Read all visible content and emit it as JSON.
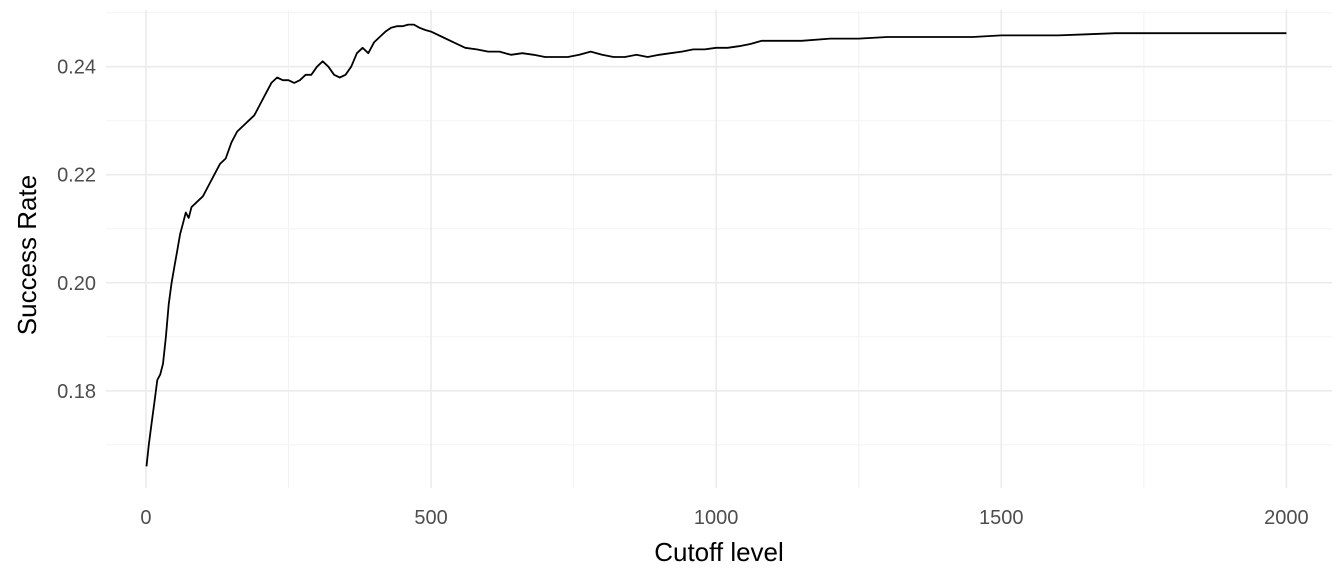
{
  "chart_data": {
    "type": "line",
    "title": "",
    "xlabel": "Cutoff level",
    "ylabel": "Success Rate",
    "xlim": [
      -70,
      2080
    ],
    "ylim": [
      0.162,
      0.2505
    ],
    "x_ticks": [
      0,
      500,
      1000,
      1500,
      2000
    ],
    "x_tick_labels": [
      "0",
      "500",
      "1000",
      "1500",
      "2000"
    ],
    "y_ticks": [
      0.18,
      0.2,
      0.22,
      0.24
    ],
    "y_tick_labels": [
      "0.18",
      "0.20",
      "0.22",
      "0.24"
    ],
    "grid": true,
    "legend": "none",
    "series": [
      {
        "color": "#000000",
        "x": [
          1,
          5,
          10,
          15,
          20,
          25,
          30,
          35,
          40,
          45,
          50,
          55,
          60,
          65,
          70,
          75,
          80,
          90,
          100,
          110,
          120,
          130,
          140,
          150,
          160,
          170,
          180,
          190,
          200,
          210,
          220,
          230,
          240,
          250,
          260,
          270,
          280,
          290,
          300,
          310,
          320,
          330,
          340,
          350,
          360,
          370,
          380,
          390,
          400,
          410,
          420,
          430,
          440,
          450,
          460,
          470,
          480,
          490,
          500,
          520,
          540,
          560,
          580,
          600,
          620,
          640,
          660,
          680,
          700,
          720,
          740,
          760,
          780,
          800,
          820,
          840,
          860,
          880,
          900,
          920,
          940,
          960,
          980,
          1000,
          1020,
          1040,
          1060,
          1080,
          1100,
          1150,
          1200,
          1250,
          1300,
          1350,
          1400,
          1450,
          1500,
          1550,
          1600,
          1650,
          1700,
          1750,
          1800,
          1850,
          1900,
          1950,
          2000
        ],
        "y": [
          0.166,
          0.17,
          0.174,
          0.178,
          0.182,
          0.183,
          0.185,
          0.19,
          0.196,
          0.2,
          0.203,
          0.206,
          0.209,
          0.211,
          0.213,
          0.212,
          0.214,
          0.215,
          0.216,
          0.218,
          0.22,
          0.222,
          0.223,
          0.226,
          0.228,
          0.229,
          0.23,
          0.231,
          0.233,
          0.235,
          0.237,
          0.238,
          0.2375,
          0.2375,
          0.237,
          0.2375,
          0.2385,
          0.2385,
          0.24,
          0.241,
          0.24,
          0.2385,
          0.238,
          0.2385,
          0.24,
          0.2425,
          0.2435,
          0.2425,
          0.2445,
          0.2455,
          0.2465,
          0.2472,
          0.2475,
          0.2475,
          0.2478,
          0.2478,
          0.2472,
          0.2468,
          0.2465,
          0.2455,
          0.2445,
          0.2435,
          0.2432,
          0.2428,
          0.2428,
          0.2422,
          0.2425,
          0.2422,
          0.2418,
          0.2418,
          0.2418,
          0.2422,
          0.2428,
          0.2422,
          0.2418,
          0.2418,
          0.2422,
          0.2418,
          0.2422,
          0.2425,
          0.2428,
          0.2432,
          0.2432,
          0.2435,
          0.2435,
          0.2438,
          0.2442,
          0.2448,
          0.2448,
          0.2448,
          0.2452,
          0.2452,
          0.2455,
          0.2455,
          0.2455,
          0.2455,
          0.2458,
          0.2458,
          0.2458,
          0.246,
          0.2462,
          0.2462,
          0.2462,
          0.2462,
          0.2462,
          0.2462,
          0.2462
        ]
      }
    ]
  }
}
